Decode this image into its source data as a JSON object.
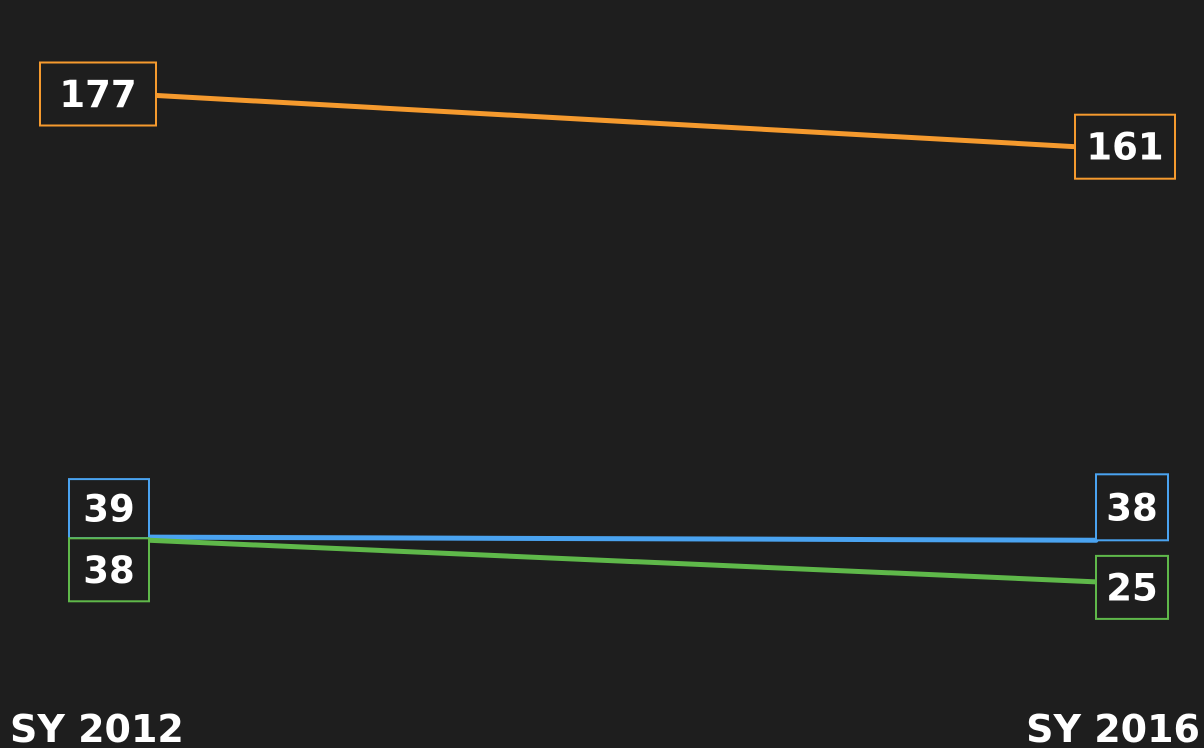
{
  "chart_data": {
    "type": "line",
    "categories": [
      "SY 2012",
      "SY 2016"
    ],
    "series": [
      {
        "values": [
          177,
          161
        ],
        "color": "#f59a2e"
      },
      {
        "values": [
          39,
          38
        ],
        "color": "#4aa3f0"
      },
      {
        "values": [
          38,
          25
        ],
        "color": "#5fb84a"
      }
    ],
    "background": "#1e1e1e",
    "grid": false,
    "legend": "none"
  }
}
